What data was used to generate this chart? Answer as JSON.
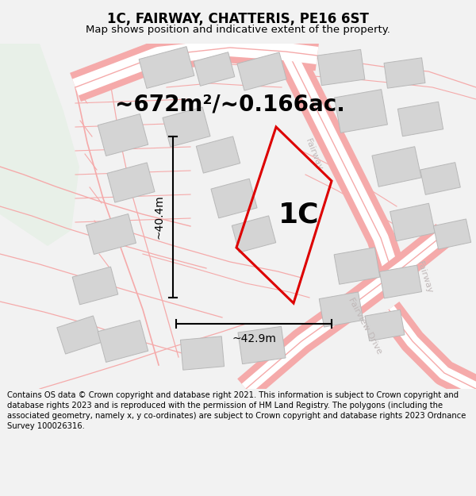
{
  "title": "1C, FAIRWAY, CHATTERIS, PE16 6ST",
  "subtitle": "Map shows position and indicative extent of the property.",
  "area_text": "~672m²/~0.166ac.",
  "label": "1C",
  "dim_width": "~42.9m",
  "dim_height": "~40.4m",
  "footer": "Contains OS data © Crown copyright and database right 2021. This information is subject to Crown copyright and database rights 2023 and is reproduced with the permission of HM Land Registry. The polygons (including the associated geometry, namely x, y co-ordinates) are subject to Crown copyright and database rights 2023 Ordnance Survey 100026316.",
  "bg_color": "#f2f2f2",
  "map_bg": "#ffffff",
  "road_color": "#f5aaaa",
  "building_color": "#d4d4d4",
  "building_edge": "#b8b8b8",
  "green_area": "#e8f0e8",
  "plot_color": "#dd0000",
  "street_label_color": "#c0b8b8",
  "title_fontsize": 12,
  "subtitle_fontsize": 9.5,
  "area_fontsize": 20,
  "label_fontsize": 26,
  "dim_fontsize": 10,
  "footer_fontsize": 7.2
}
